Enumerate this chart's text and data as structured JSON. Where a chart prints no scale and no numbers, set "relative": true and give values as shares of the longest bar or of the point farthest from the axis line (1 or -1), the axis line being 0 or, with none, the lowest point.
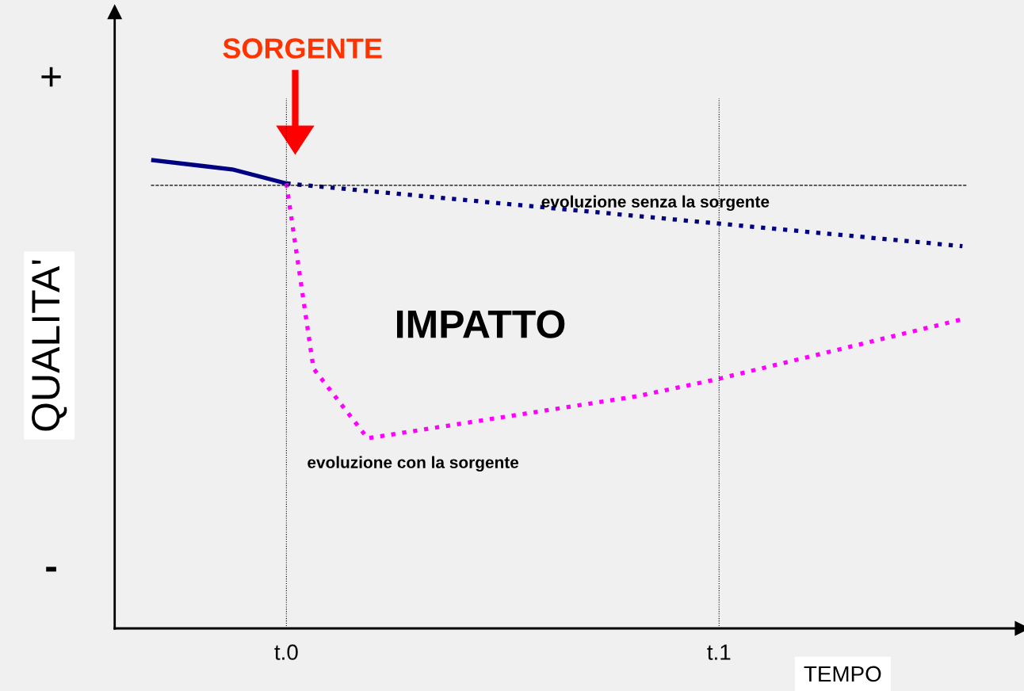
{
  "chart_data": {
    "type": "line",
    "relative": true,
    "ylabel": "QUALITA'",
    "xlabel": "TEMPO",
    "categories": [
      null,
      null,
      null,
      null,
      null,
      "t.0",
      null,
      null,
      null,
      null,
      null,
      null,
      null,
      null,
      null,
      null,
      null,
      null,
      null,
      null,
      null,
      "t.1",
      null,
      null,
      null,
      null,
      null,
      null,
      null,
      null,
      null
    ],
    "grid": false,
    "marker": "none",
    "series": [
      {
        "color": "#000080",
        "line_style": "solid",
        "values": [
          1.0,
          null,
          null,
          0.98,
          null,
          0.95,
          null,
          null,
          null,
          null,
          null,
          null,
          null,
          null,
          null,
          null,
          null,
          null,
          null,
          null,
          null,
          null,
          null,
          null,
          null,
          null,
          null,
          null,
          null,
          null,
          null
        ]
      },
      {
        "name": "evoluzione senza la sorgente",
        "color": "#000080",
        "line_style": "dotted",
        "values": [
          null,
          null,
          null,
          null,
          null,
          0.95,
          null,
          null,
          null,
          null,
          null,
          null,
          null,
          null,
          null,
          null,
          null,
          null,
          null,
          null,
          null,
          null,
          null,
          null,
          null,
          null,
          null,
          null,
          null,
          null,
          0.816
        ]
      },
      {
        "name": "evoluzione con la sorgente",
        "color": "#ff00ff",
        "line_style": "dotted",
        "values": [
          null,
          null,
          null,
          null,
          null,
          0.95,
          0.555,
          null,
          0.406,
          null,
          null,
          null,
          null,
          null,
          null,
          null,
          null,
          null,
          0.496,
          null,
          null,
          0.533,
          null,
          null,
          null,
          null,
          null,
          null,
          null,
          null,
          0.66
        ]
      }
    ],
    "ref_lines": [
      {
        "axis": "y",
        "value": 0.946,
        "color": "#000000",
        "line_style": "dashed"
      },
      {
        "axis": "x",
        "value": "t.0",
        "color": "#000000",
        "line_style": "dotted"
      },
      {
        "axis": "x",
        "value": "t.1",
        "color": "#000000",
        "line_style": "dotted"
      }
    ],
    "annotations": [
      "SORGENTE",
      "IMPATTO",
      "+",
      "-"
    ]
  }
}
